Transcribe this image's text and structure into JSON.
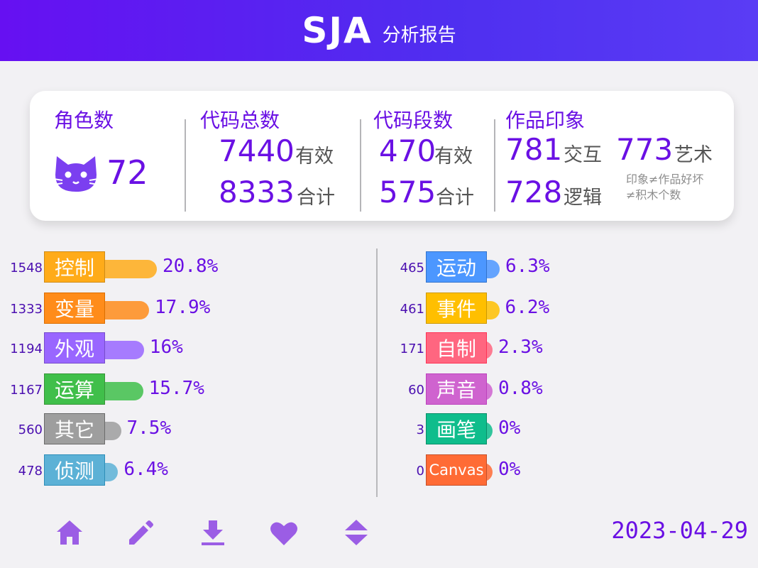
{
  "header": {
    "logo": "SJA",
    "subtitle": "分析报告"
  },
  "summary": {
    "roles": {
      "title": "角色数",
      "value": "72",
      "icon": "cat-icon"
    },
    "code_total": {
      "title": "代码总数",
      "valid": "7440",
      "valid_label": "有效",
      "total": "8333",
      "total_label": "合计"
    },
    "code_segments": {
      "title": "代码段数",
      "valid": "470",
      "valid_label": "有效",
      "total": "575",
      "total_label": "合计"
    },
    "impression": {
      "title": "作品印象",
      "interaction": "781",
      "interaction_label": "交互",
      "art": "773",
      "art_label": "艺术",
      "logic": "728",
      "logic_label": "逻辑",
      "note_line1": "印象≠作品好坏",
      "note_line2": "≠积木个数"
    }
  },
  "left_categories": [
    {
      "count": "1548",
      "label": "控制",
      "pct": "20.8%",
      "ratio": 0.208,
      "color": "#ffab19",
      "border": "#cf8b17"
    },
    {
      "count": "1333",
      "label": "变量",
      "pct": "17.9%",
      "ratio": 0.179,
      "color": "#ff8c1a",
      "border": "#db6e00"
    },
    {
      "count": "1194",
      "label": "外观",
      "pct": "16%",
      "ratio": 0.16,
      "color": "#9966ff",
      "border": "#774dcb"
    },
    {
      "count": "1167",
      "label": "运算",
      "pct": "15.7%",
      "ratio": 0.157,
      "color": "#40bf4a",
      "border": "#389438"
    },
    {
      "count": "560",
      "label": "其它",
      "pct": "7.5%",
      "ratio": 0.075,
      "color": "#9e9e9e",
      "border": "#6b6b6b"
    },
    {
      "count": "478",
      "label": "侦测",
      "pct": "6.4%",
      "ratio": 0.064,
      "color": "#5cb1d6",
      "border": "#2e8eb8"
    }
  ],
  "right_categories": [
    {
      "count": "465",
      "label": "运动",
      "pct": "6.3%",
      "ratio": 0.063,
      "color": "#4c97ff",
      "border": "#3373cc"
    },
    {
      "count": "461",
      "label": "事件",
      "pct": "6.2%",
      "ratio": 0.062,
      "color": "#ffbf00",
      "border": "#cc9900"
    },
    {
      "count": "171",
      "label": "自制",
      "pct": "2.3%",
      "ratio": 0.023,
      "color": "#ff6680",
      "border": "#ff3355"
    },
    {
      "count": "60",
      "label": "声音",
      "pct": "0.8%",
      "ratio": 0.008,
      "color": "#cf63cf",
      "border": "#bd42bd"
    },
    {
      "count": "3",
      "label": "画笔",
      "pct": "0%",
      "ratio": 0.0,
      "color": "#0fbd8c",
      "border": "#0b8e69"
    },
    {
      "count": "0",
      "label": "Canvas",
      "pct": "0%",
      "ratio": 0.0,
      "color": "#ff6b35",
      "border": "#c4502a"
    }
  ],
  "footer": {
    "icons": [
      "home-icon",
      "edit-icon",
      "download-icon",
      "heart-icon",
      "sort-icon"
    ],
    "date": "2023-04-29"
  },
  "colors": {
    "accent": "#6a10e4",
    "header_start": "#6610f2",
    "header_end": "#4f2ff0",
    "icon": "#9b5de5"
  }
}
